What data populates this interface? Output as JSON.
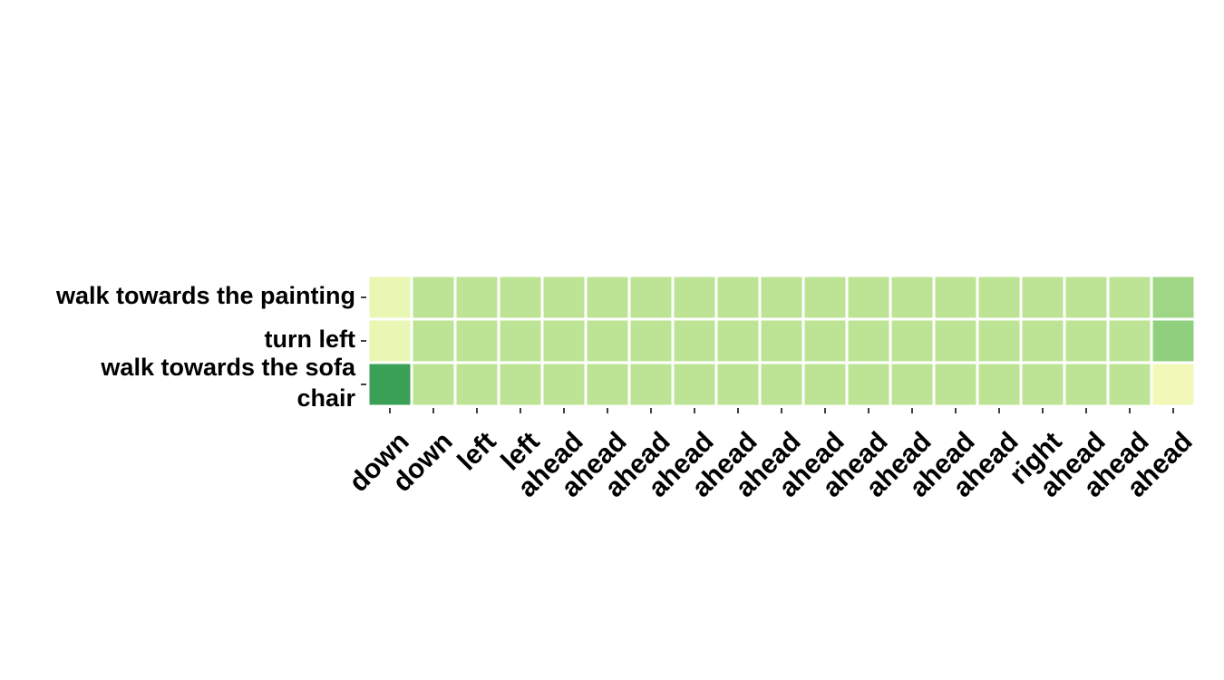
{
  "chart_data": {
    "type": "heatmap",
    "title": "",
    "xlabel": "",
    "ylabel": "",
    "colorbar": false,
    "rows": [
      [
        "walk towards the painting"
      ],
      [
        "turn left"
      ],
      [
        "walk towards the sofa",
        "chair"
      ]
    ],
    "columns": [
      "down",
      "down",
      "left",
      "left",
      "ahead",
      "ahead",
      "ahead",
      "ahead",
      "ahead",
      "ahead",
      "ahead",
      "ahead",
      "ahead",
      "ahead",
      "ahead",
      "right",
      "ahead",
      "ahead",
      "ahead"
    ],
    "colors": [
      [
        "#e9f7b5",
        "#bde495",
        "#bde495",
        "#bde495",
        "#bde495",
        "#bde495",
        "#bde495",
        "#bde495",
        "#bde495",
        "#bde495",
        "#bde495",
        "#bde495",
        "#bde495",
        "#bde495",
        "#bde495",
        "#bde495",
        "#bde495",
        "#bde495",
        "#9ed685"
      ],
      [
        "#e9f7b5",
        "#bde495",
        "#bde495",
        "#bde495",
        "#bde495",
        "#bde495",
        "#bde495",
        "#bde495",
        "#bde495",
        "#bde495",
        "#bde495",
        "#bde495",
        "#bde495",
        "#bde495",
        "#bde495",
        "#bde495",
        "#bde495",
        "#bde495",
        "#8fd07f"
      ],
      [
        "#39a056",
        "#bde495",
        "#bde495",
        "#bde495",
        "#bde495",
        "#bde495",
        "#bde495",
        "#bde495",
        "#bde495",
        "#bde495",
        "#bde495",
        "#bde495",
        "#bde495",
        "#bde495",
        "#bde495",
        "#bde495",
        "#bde495",
        "#bde495",
        "#f2f9b8"
      ]
    ]
  }
}
